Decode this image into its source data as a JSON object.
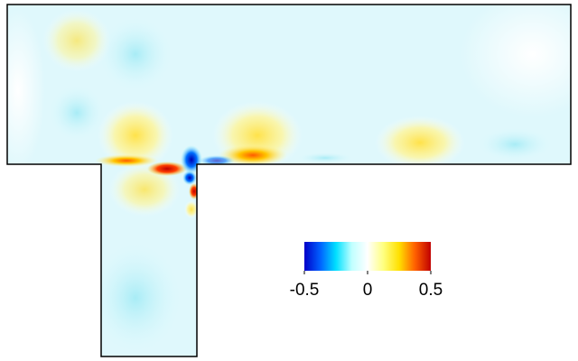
{
  "chart_data": {
    "type": "contour",
    "colorbar": {
      "lim": [
        -0.5,
        0.5
      ],
      "ticks": [
        -0.5,
        0,
        0.5
      ],
      "colors": [
        "#0000c8",
        "#0060ff",
        "#00e0ff",
        "#c0ffff",
        "#ffffff",
        "#ffff80",
        "#ffe000",
        "#ff6000",
        "#c00000"
      ]
    }
  }
}
